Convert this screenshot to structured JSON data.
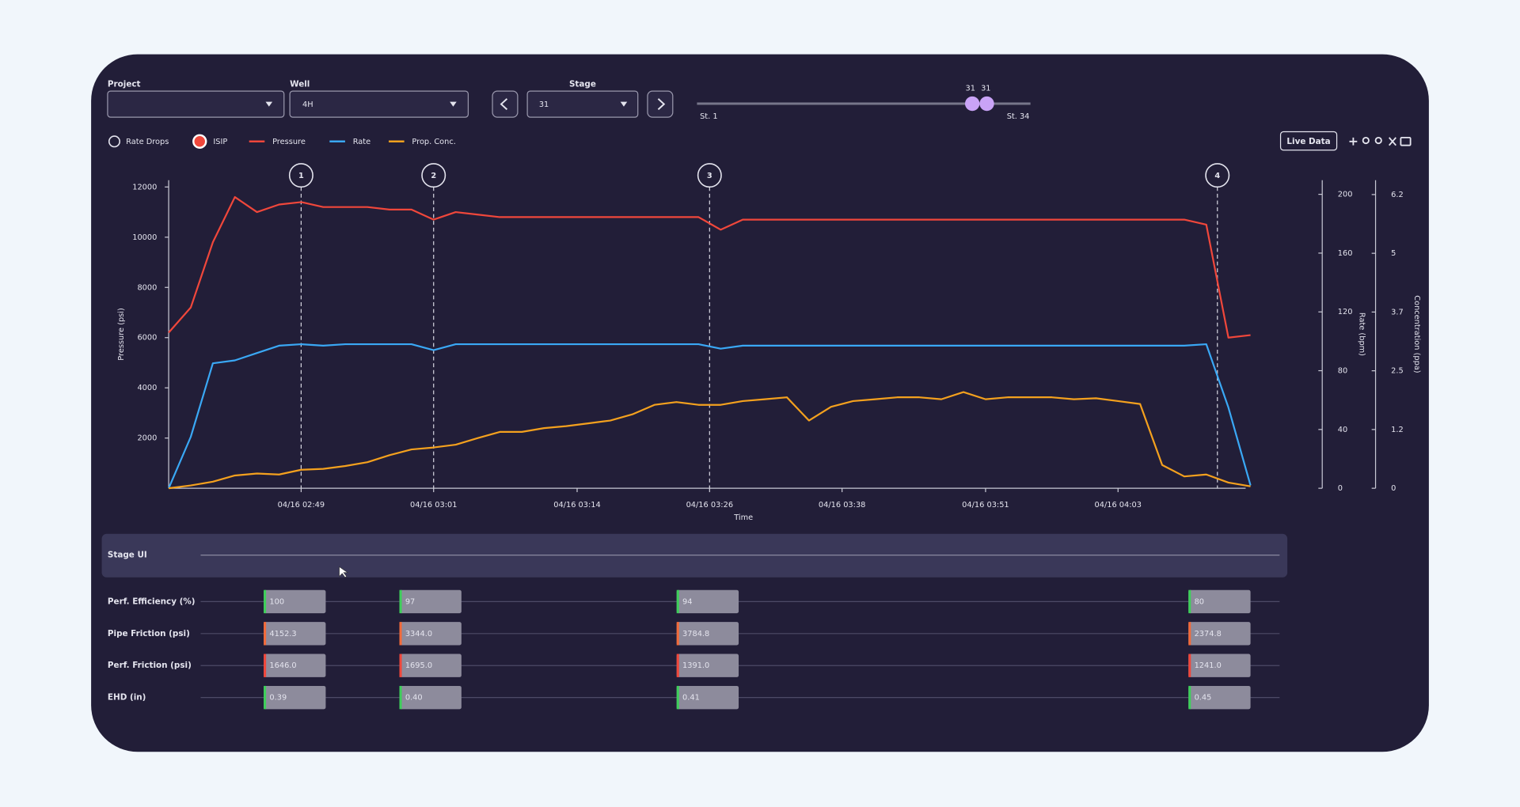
{
  "controls": {
    "project_label": "Project",
    "well_label": "Well",
    "well_value": "4H",
    "stage_label": "Stage",
    "stage_value": "31",
    "slider": {
      "low": "31",
      "high": "31",
      "min_label": "St. 1",
      "max_label": "St. 34"
    },
    "toggles": [
      "Rate Drops",
      "ISIP"
    ],
    "live_data": "Live Data"
  },
  "chart_data": {
    "type": "line",
    "xlabel": "Time",
    "ylabel": "Pressure (psi)",
    "y2label": "Rate (bpm)",
    "y3label": "Concentration (ppa)",
    "x": [
      "04/16 02:37",
      "04/16 02:39",
      "04/16 02:41",
      "04/16 02:43",
      "04/16 02:45",
      "04/16 02:47",
      "04/16 02:49",
      "04/16 02:51",
      "04/16 02:53",
      "04/16 02:55",
      "04/16 02:57",
      "04/16 02:59",
      "04/16 03:01",
      "04/16 03:03",
      "04/16 03:05",
      "04/16 03:07",
      "04/16 03:09",
      "04/16 03:11",
      "04/16 03:13",
      "04/16 03:15",
      "04/16 03:17",
      "04/16 03:19",
      "04/16 03:21",
      "04/16 03:23",
      "04/16 03:25",
      "04/16 03:27",
      "04/16 03:29",
      "04/16 03:31",
      "04/16 03:33",
      "04/16 03:35",
      "04/16 03:37",
      "04/16 03:39",
      "04/16 03:41",
      "04/16 03:43",
      "04/16 03:45",
      "04/16 03:47",
      "04/16 03:49",
      "04/16 03:51",
      "04/16 03:53",
      "04/16 03:55",
      "04/16 03:57",
      "04/16 03:59",
      "04/16 04:01",
      "04/16 04:03",
      "04/16 04:05",
      "04/16 04:07",
      "04/16 04:09",
      "04/16 04:11",
      "04/16 04:13",
      "04/16 04:15"
    ],
    "series": [
      {
        "name": "Pressure",
        "color": "#f0473b",
        "axis": "y",
        "values": [
          6200,
          7200,
          9800,
          11600,
          11000,
          11300,
          11400,
          11200,
          11200,
          11200,
          11100,
          11100,
          10700,
          11000,
          10900,
          10800,
          10800,
          10800,
          10800,
          10800,
          10800,
          10800,
          10800,
          10800,
          10800,
          10300,
          10700,
          10700,
          10700,
          10700,
          10700,
          10700,
          10700,
          10700,
          10700,
          10700,
          10700,
          10700,
          10700,
          10700,
          10700,
          10700,
          10700,
          10700,
          10700,
          10700,
          10700,
          10500,
          6000,
          6100
        ]
      },
      {
        "name": "Rate",
        "color": "#3aa8f5",
        "axis": "y2",
        "values": [
          0,
          35,
          85,
          87,
          92,
          97,
          98,
          97,
          98,
          98,
          98,
          98,
          94,
          98,
          98,
          98,
          98,
          98,
          98,
          98,
          98,
          98,
          98,
          98,
          98,
          95,
          97,
          97,
          97,
          97,
          97,
          97,
          97,
          97,
          97,
          97,
          97,
          97,
          97,
          97,
          97,
          97,
          97,
          97,
          97,
          97,
          97,
          98,
          55,
          2
        ]
      },
      {
        "name": "Prop. Conc.",
        "color": "#f4a11e",
        "axis": "y3",
        "values": [
          0,
          0.06,
          0.14,
          0.27,
          0.31,
          0.29,
          0.39,
          0.41,
          0.47,
          0.55,
          0.7,
          0.82,
          0.86,
          0.92,
          1.06,
          1.19,
          1.19,
          1.27,
          1.31,
          1.37,
          1.43,
          1.56,
          1.76,
          1.82,
          1.76,
          1.76,
          1.84,
          1.88,
          1.92,
          1.43,
          1.72,
          1.84,
          1.88,
          1.92,
          1.92,
          1.88,
          2.03,
          1.88,
          1.92,
          1.92,
          1.92,
          1.88,
          1.9,
          1.84,
          1.78,
          0.49,
          0.25,
          0.29,
          0.12,
          0.04
        ]
      }
    ],
    "xlim": [
      "04/16 02:37",
      "04/16 04:15"
    ],
    "xticks": [
      "04/16 02:49",
      "04/16 03:01",
      "04/16 03:14",
      "04/16 03:26",
      "04/16 03:38",
      "04/16 03:51",
      "04/16 04:03"
    ],
    "ylim": [
      0,
      12000
    ],
    "yticks": [
      2000,
      4000,
      6000,
      8000,
      10000,
      12000
    ],
    "y2lim": [
      0,
      205
    ],
    "y2ticks": [
      0,
      40,
      80,
      120,
      160,
      200
    ],
    "y3lim": [
      0,
      6.36
    ],
    "y3ticks": [
      0,
      {
        "value": 1.24,
        "label": "1.2"
      },
      {
        "value": 2.48,
        "label": "2.5"
      },
      {
        "value": 3.72,
        "label": "3.7"
      },
      {
        "value": 4.96,
        "label": "5"
      },
      6.2
    ],
    "stage_markers": [
      {
        "label": "1",
        "x": "04/16 02:49"
      },
      {
        "label": "2",
        "x": "04/16 03:01"
      },
      {
        "label": "3",
        "x": "04/16 03:26"
      },
      {
        "label": "4",
        "x": "04/16 04:12"
      }
    ]
  },
  "stage_ui": {
    "title": "Stage UI",
    "rows": [
      {
        "label": "Perf. Efficiency (%)",
        "values": [
          "100",
          "97",
          "94",
          "80"
        ]
      },
      {
        "label": "Pipe Friction (psi)",
        "values": [
          "4152.3",
          "3344.0",
          "3784.8",
          "2374.8"
        ]
      },
      {
        "label": "Perf. Friction (psi)",
        "values": [
          "1646.0",
          "1695.0",
          "1391.0",
          "1241.0"
        ]
      },
      {
        "label": "EHD (in)",
        "values": [
          "0.39",
          "0.40",
          "0.41",
          "0.45"
        ]
      }
    ]
  }
}
